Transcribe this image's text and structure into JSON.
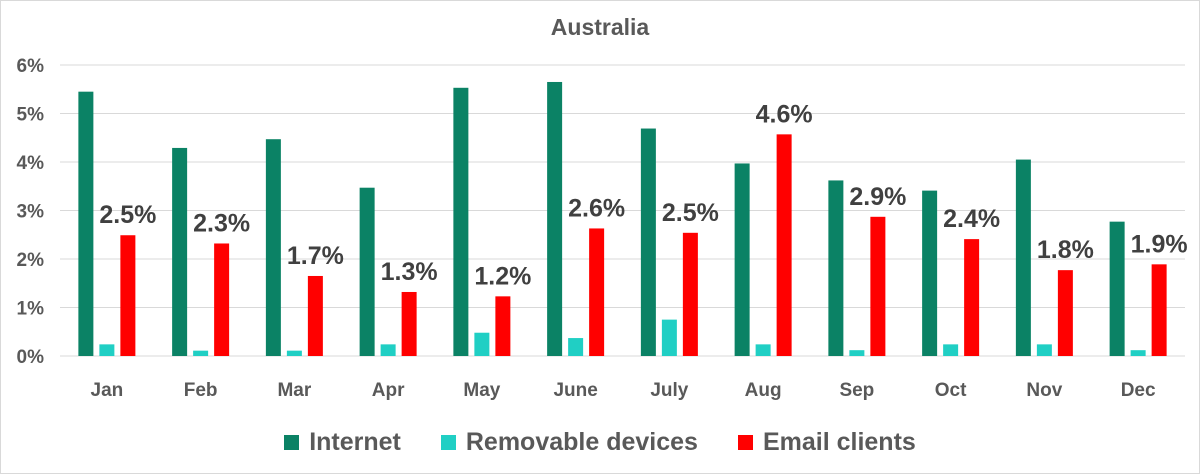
{
  "chart_data": {
    "type": "bar",
    "title": "Australia",
    "xlabel": "",
    "ylabel": "",
    "categories": [
      "Jan",
      "Feb",
      "Mar",
      "Apr",
      "May",
      "June",
      "July",
      "Aug",
      "Sep",
      "Oct",
      "Nov",
      "Dec"
    ],
    "series": [
      {
        "name": "Internet",
        "color": "#0b8265",
        "values": [
          5.45,
          4.29,
          4.47,
          3.47,
          5.53,
          5.65,
          4.69,
          3.97,
          3.62,
          3.41,
          4.05,
          2.77
        ]
      },
      {
        "name": "Removable devices",
        "color": "#20cfc4",
        "values": [
          0.24,
          0.11,
          0.11,
          0.24,
          0.48,
          0.37,
          0.75,
          0.24,
          0.12,
          0.24,
          0.24,
          0.12
        ]
      },
      {
        "name": "Email clients",
        "color": "#ff0000",
        "values": [
          2.49,
          2.32,
          1.65,
          1.32,
          1.23,
          2.63,
          2.54,
          4.57,
          2.87,
          2.41,
          1.77,
          1.89
        ],
        "data_labels": [
          "2.5%",
          "2.3%",
          "1.7%",
          "1.3%",
          "1.2%",
          "2.6%",
          "2.5%",
          "4.6%",
          "2.9%",
          "2.4%",
          "1.8%",
          "1.9%"
        ]
      }
    ],
    "ylim": [
      0,
      6
    ],
    "yticks": [
      0,
      1,
      2,
      3,
      4,
      5,
      6
    ],
    "ytick_labels": [
      "0%",
      "1%",
      "2%",
      "3%",
      "4%",
      "5%",
      "6%"
    ],
    "grid": true,
    "legend_position": "bottom"
  }
}
